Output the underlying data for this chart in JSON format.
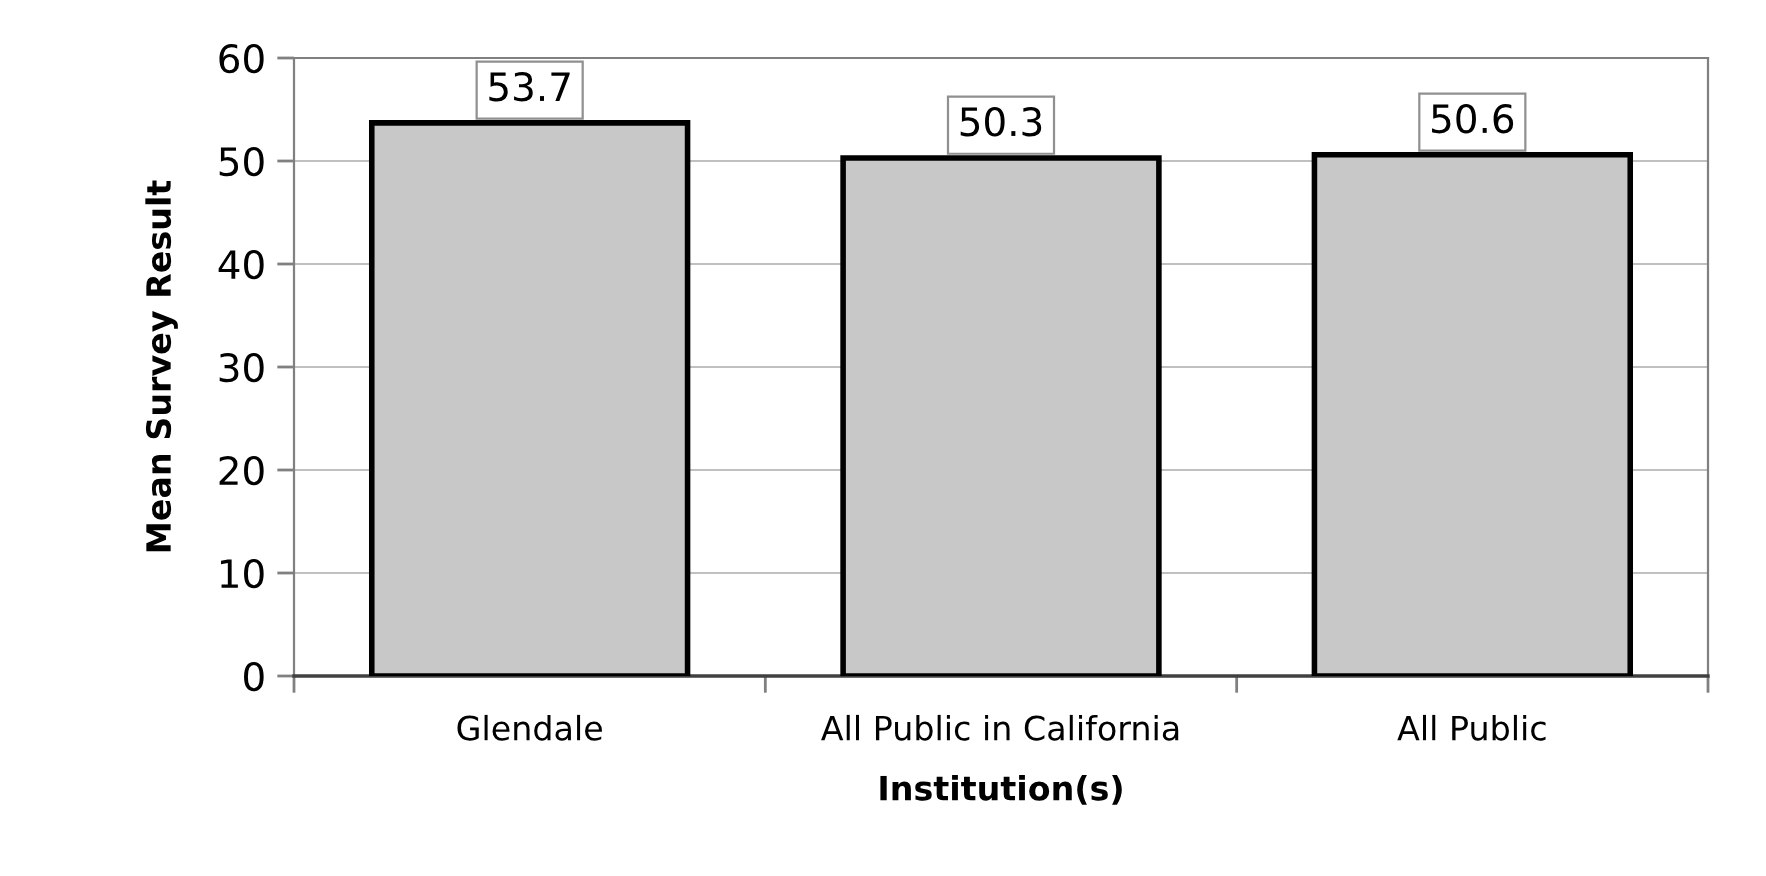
{
  "chart_data": {
    "type": "bar",
    "categories": [
      "Glendale",
      "All Public in California",
      "All Public"
    ],
    "values": [
      53.7,
      50.3,
      50.6
    ],
    "color": "#c8c8c8",
    "xlabel": "Institution(s)",
    "ylabel": "Mean Survey Result",
    "ylim": [
      0,
      60
    ],
    "yticks": [
      0,
      10,
      20,
      30,
      40,
      50,
      60
    ],
    "grid": "y",
    "data_labels": true
  }
}
